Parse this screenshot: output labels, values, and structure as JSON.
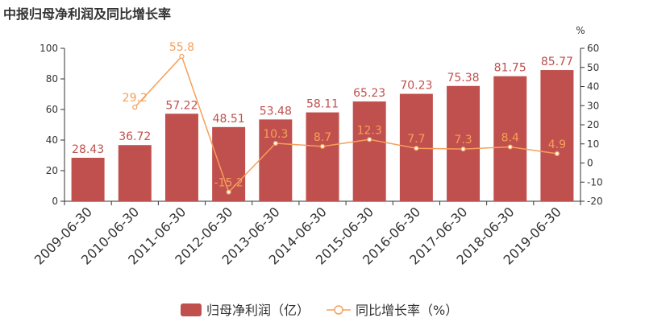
{
  "title": "中报归母净利润及同比增长率",
  "colors": {
    "bar": "#c0504d",
    "line": "#f5a05a",
    "bar_label": "#c0504d",
    "line_label": "#f5a05a",
    "axis": "#333333"
  },
  "chart_data": {
    "type": "bar",
    "title": "中报归母净利润及同比增长率",
    "categories": [
      "2009-06-30",
      "2010-06-30",
      "2011-06-30",
      "2012-06-30",
      "2013-06-30",
      "2014-06-30",
      "2015-06-30",
      "2016-06-30",
      "2017-06-30",
      "2018-06-30",
      "2019-06-30"
    ],
    "series": [
      {
        "name": "归母净利润（亿）",
        "type": "bar",
        "axis": "left",
        "values": [
          28.43,
          36.72,
          57.22,
          48.51,
          53.48,
          58.11,
          65.23,
          70.23,
          75.38,
          81.75,
          85.77
        ],
        "labels": [
          "28.43",
          "36.72",
          "57.22",
          "48.51",
          "53.48",
          "58.11",
          "65.23",
          "70.23",
          "75.38",
          "81.75",
          "85.77"
        ]
      },
      {
        "name": "同比增长率（%）",
        "type": "line",
        "axis": "right",
        "values": [
          null,
          29.2,
          55.8,
          -15.2,
          10.3,
          8.7,
          12.3,
          7.7,
          7.3,
          8.4,
          4.9
        ],
        "labels": [
          "",
          "29.2",
          "55.8",
          "-15.2",
          "10.3",
          "8.7",
          "12.3",
          "7.7",
          "7.3",
          "8.4",
          "4.9"
        ]
      }
    ],
    "y_left": {
      "min": 0,
      "max": 100,
      "ticks": [
        "0",
        "20",
        "40",
        "60",
        "80",
        "100"
      ]
    },
    "y_right": {
      "min": -20,
      "max": 60,
      "unit": "%",
      "ticks": [
        "-20",
        "-10",
        "0",
        "10",
        "20",
        "30",
        "40",
        "50",
        "60"
      ]
    },
    "grid": false,
    "legend_position": "bottom-center"
  }
}
